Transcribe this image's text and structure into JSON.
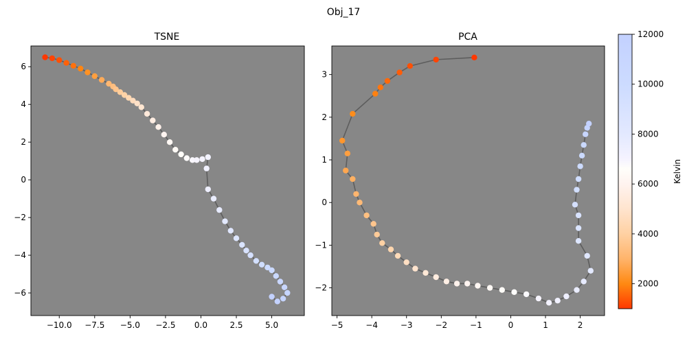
{
  "suptitle": "Obj_17",
  "chart_data": [
    {
      "type": "scatter",
      "title": "TSNE",
      "xlabel": "",
      "ylabel": "",
      "xlim": [
        -12.0,
        7.3
      ],
      "ylim": [
        -7.2,
        7.1
      ],
      "xticks": [
        -10.0,
        -7.5,
        -5.0,
        -2.5,
        0.0,
        2.5,
        5.0
      ],
      "xtick_labels": [
        "−10.0",
        "−7.5",
        "−5.0",
        "−2.5",
        "0.0",
        "2.5",
        "5.0"
      ],
      "yticks": [
        -6,
        -4,
        -2,
        0,
        2,
        4,
        6
      ],
      "ytick_labels": [
        "−6",
        "−4",
        "−2",
        "0",
        "2",
        "4",
        "6"
      ],
      "background": "#878787",
      "connect_points": true,
      "x": [
        -11.0,
        -10.5,
        -10.0,
        -9.5,
        -9.0,
        -8.5,
        -8.0,
        -7.5,
        -7.0,
        -6.5,
        -6.2,
        -6.0,
        -5.7,
        -5.4,
        -5.1,
        -4.8,
        -4.5,
        -4.2,
        -3.8,
        -3.4,
        -3.0,
        -2.6,
        -2.2,
        -1.8,
        -1.4,
        -1.0,
        -0.6,
        -0.3,
        0.1,
        0.5,
        0.4,
        0.5,
        0.9,
        1.3,
        1.7,
        2.1,
        2.5,
        2.9,
        3.2,
        3.5,
        3.9,
        4.3,
        4.7,
        5.0,
        5.3,
        5.6,
        5.9,
        6.1,
        5.8,
        5.4,
        5.0
      ],
      "y": [
        6.5,
        6.45,
        6.35,
        6.2,
        6.05,
        5.9,
        5.7,
        5.5,
        5.3,
        5.1,
        4.95,
        4.8,
        4.65,
        4.5,
        4.35,
        4.2,
        4.05,
        3.85,
        3.5,
        3.15,
        2.8,
        2.4,
        2.0,
        1.6,
        1.35,
        1.15,
        1.05,
        1.05,
        1.1,
        1.2,
        0.6,
        -0.5,
        -1.0,
        -1.6,
        -2.2,
        -2.7,
        -3.1,
        -3.45,
        -3.75,
        -4.0,
        -4.3,
        -4.5,
        -4.65,
        -4.8,
        -5.1,
        -5.4,
        -5.7,
        -6.0,
        -6.3,
        -6.45,
        -6.2
      ],
      "temperature_kelvin": [
        1000,
        1150,
        1300,
        1500,
        1700,
        1950,
        2200,
        2500,
        2800,
        3100,
        3350,
        3600,
        3850,
        4100,
        4350,
        4600,
        4850,
        5100,
        5350,
        5600,
        5850,
        6050,
        6250,
        6400,
        6550,
        6700,
        6850,
        6950,
        7050,
        7150,
        7250,
        7400,
        7600,
        7800,
        8000,
        8250,
        8500,
        8750,
        9000,
        9250,
        9500,
        9750,
        10000,
        10250,
        10500,
        10750,
        11000,
        11250,
        11500,
        11750,
        12000
      ]
    },
    {
      "type": "scatter",
      "title": "PCA",
      "xlabel": "",
      "ylabel": "",
      "xlim": [
        -5.15,
        2.7
      ],
      "ylim": [
        -2.65,
        3.67
      ],
      "xticks": [
        -5,
        -4,
        -3,
        -2,
        -1,
        0,
        1,
        2
      ],
      "xtick_labels": [
        "−5",
        "−4",
        "−3",
        "−2",
        "−1",
        "0",
        "1",
        "2"
      ],
      "yticks": [
        -2,
        -1,
        0,
        1,
        2,
        3
      ],
      "ytick_labels": [
        "−2",
        "−1",
        "0",
        "1",
        "2",
        "3"
      ],
      "background": "#878787",
      "connect_points": true,
      "x": [
        -1.05,
        -2.15,
        -2.9,
        -3.2,
        -3.55,
        -3.75,
        -3.9,
        -4.55,
        -4.85,
        -4.7,
        -4.75,
        -4.55,
        -4.45,
        -4.35,
        -4.15,
        -3.95,
        -3.85,
        -3.7,
        -3.45,
        -3.25,
        -3.0,
        -2.75,
        -2.45,
        -2.15,
        -1.85,
        -1.55,
        -1.25,
        -0.95,
        -0.6,
        -0.25,
        0.1,
        0.45,
        0.8,
        1.1,
        1.35,
        1.6,
        1.9,
        2.1,
        2.3,
        2.2,
        1.95,
        1.95,
        1.95,
        1.85,
        1.9,
        1.95,
        2.0,
        2.05,
        2.1,
        2.15,
        2.2,
        2.25
      ],
      "y": [
        3.4,
        3.35,
        3.2,
        3.05,
        2.85,
        2.7,
        2.55,
        2.08,
        1.45,
        1.15,
        0.75,
        0.55,
        0.2,
        0.0,
        -0.3,
        -0.5,
        -0.75,
        -0.95,
        -1.1,
        -1.25,
        -1.4,
        -1.55,
        -1.65,
        -1.75,
        -1.85,
        -1.9,
        -1.9,
        -1.95,
        -2.0,
        -2.05,
        -2.1,
        -2.15,
        -2.25,
        -2.35,
        -2.3,
        -2.2,
        -2.05,
        -1.85,
        -1.6,
        -1.25,
        -0.9,
        -0.6,
        -0.3,
        -0.05,
        0.3,
        0.55,
        0.85,
        1.1,
        1.35,
        1.6,
        1.75,
        1.85
      ],
      "temperature_kelvin": [
        1000,
        1150,
        1300,
        1450,
        1600,
        1750,
        1900,
        2100,
        2300,
        2500,
        2700,
        2900,
        3050,
        3200,
        3400,
        3600,
        3800,
        4000,
        4250,
        4500,
        4750,
        5000,
        5250,
        5500,
        5700,
        5900,
        6050,
        6200,
        6350,
        6500,
        6650,
        6800,
        6950,
        7100,
        7250,
        7400,
        7600,
        7800,
        8000,
        8250,
        8500,
        8750,
        9000,
        9250,
        9500,
        9750,
        10000,
        10250,
        10500,
        11000,
        11500,
        12000
      ]
    }
  ],
  "colorbar": {
    "label": "Kelvin",
    "vmin": 1000,
    "vmax": 12000,
    "ticks": [
      2000,
      4000,
      6000,
      8000,
      10000,
      12000
    ],
    "tick_labels": [
      "2000",
      "4000",
      "6000",
      "8000",
      "10000",
      "12000"
    ],
    "colormap_stops": [
      {
        "value": 1000,
        "color": "#ff3800"
      },
      {
        "value": 2000,
        "color": "#ff8912"
      },
      {
        "value": 3000,
        "color": "#ffb46b"
      },
      {
        "value": 4000,
        "color": "#ffd1a3"
      },
      {
        "value": 5000,
        "color": "#ffe4ce"
      },
      {
        "value": 6000,
        "color": "#fff3ef"
      },
      {
        "value": 6600,
        "color": "#fffefa"
      },
      {
        "value": 7000,
        "color": "#f5f3ff"
      },
      {
        "value": 8000,
        "color": "#e3e9ff"
      },
      {
        "value": 10000,
        "color": "#ccdbff"
      },
      {
        "value": 12000,
        "color": "#c3d1ff"
      }
    ]
  }
}
